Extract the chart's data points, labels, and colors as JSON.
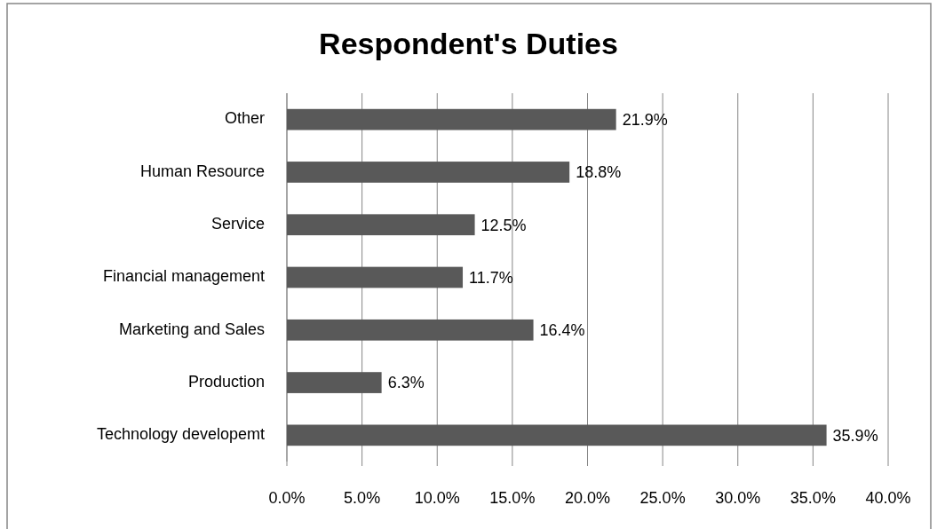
{
  "chart_data": {
    "type": "bar",
    "orientation": "horizontal",
    "title": "Respondent's Duties",
    "categories": [
      "Other",
      "Human Resource",
      "Service",
      "Financial management",
      "Marketing and Sales",
      "Production",
      "Technology developemt"
    ],
    "values": [
      21.9,
      18.8,
      12.5,
      11.7,
      16.4,
      6.3,
      35.9
    ],
    "value_labels": [
      "21.9%",
      "18.8%",
      "12.5%",
      "11.7%",
      "16.4%",
      "6.3%",
      "35.9%"
    ],
    "color": "#595959",
    "xlim": [
      0,
      40
    ],
    "xticks": [
      {
        "value": 0,
        "label": "0.0%"
      },
      {
        "value": 5,
        "label": "5.0%"
      },
      {
        "value": 10,
        "label": "10.0%"
      },
      {
        "value": 15,
        "label": "15.0%"
      },
      {
        "value": 20,
        "label": "20.0%"
      },
      {
        "value": 25,
        "label": "25.0%"
      },
      {
        "value": 30,
        "label": "30.0%"
      },
      {
        "value": 35,
        "label": "35.0%"
      },
      {
        "value": 40,
        "label": "40.0%"
      }
    ],
    "grid": "x"
  }
}
